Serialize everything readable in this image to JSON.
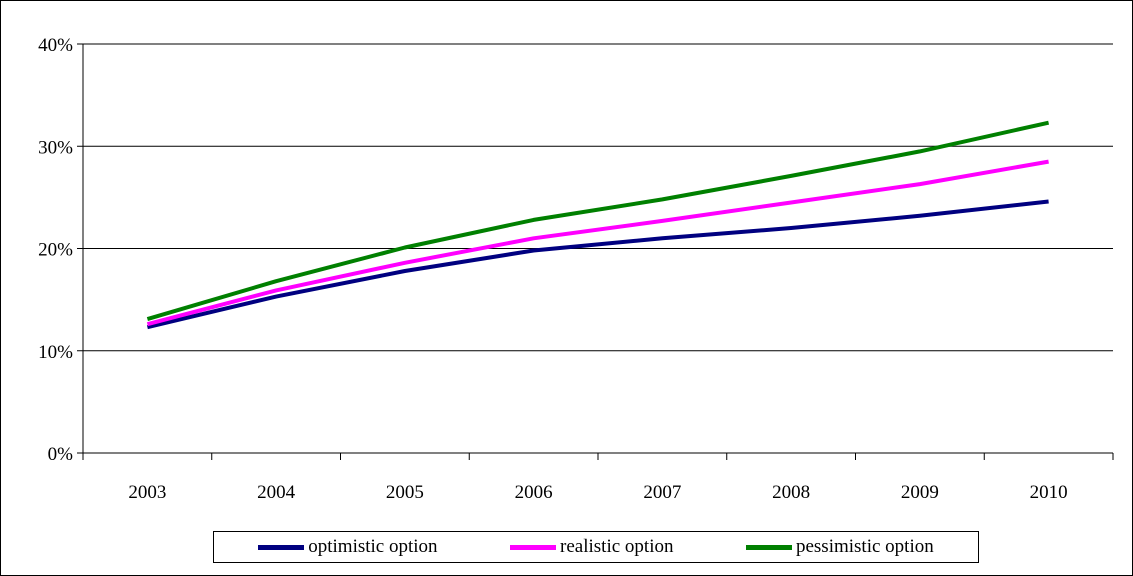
{
  "chart_data": {
    "type": "line",
    "title": "",
    "xlabel": "",
    "ylabel": "",
    "categories": [
      "2003",
      "2004",
      "2005",
      "2006",
      "2007",
      "2008",
      "2009",
      "2010"
    ],
    "y_ticks": [
      "0%",
      "10%",
      "20%",
      "30%",
      "40%"
    ],
    "y_tick_values": [
      0,
      10,
      20,
      30,
      40
    ],
    "ylim": [
      0,
      40
    ],
    "y_unit": "%",
    "grid": "horizontal",
    "legend_position": "bottom",
    "series": [
      {
        "name": "optimistic option",
        "color": "#000080",
        "values": [
          12.3,
          15.3,
          17.8,
          19.8,
          21.0,
          22.0,
          23.2,
          24.6
        ]
      },
      {
        "name": "realistic option",
        "color": "#ff00ff",
        "values": [
          12.6,
          15.9,
          18.6,
          21.0,
          22.7,
          24.5,
          26.3,
          28.5
        ]
      },
      {
        "name": "pessimistic option",
        "color": "#008000",
        "values": [
          13.1,
          16.8,
          20.1,
          22.8,
          24.8,
          27.1,
          29.5,
          32.3
        ]
      }
    ]
  }
}
